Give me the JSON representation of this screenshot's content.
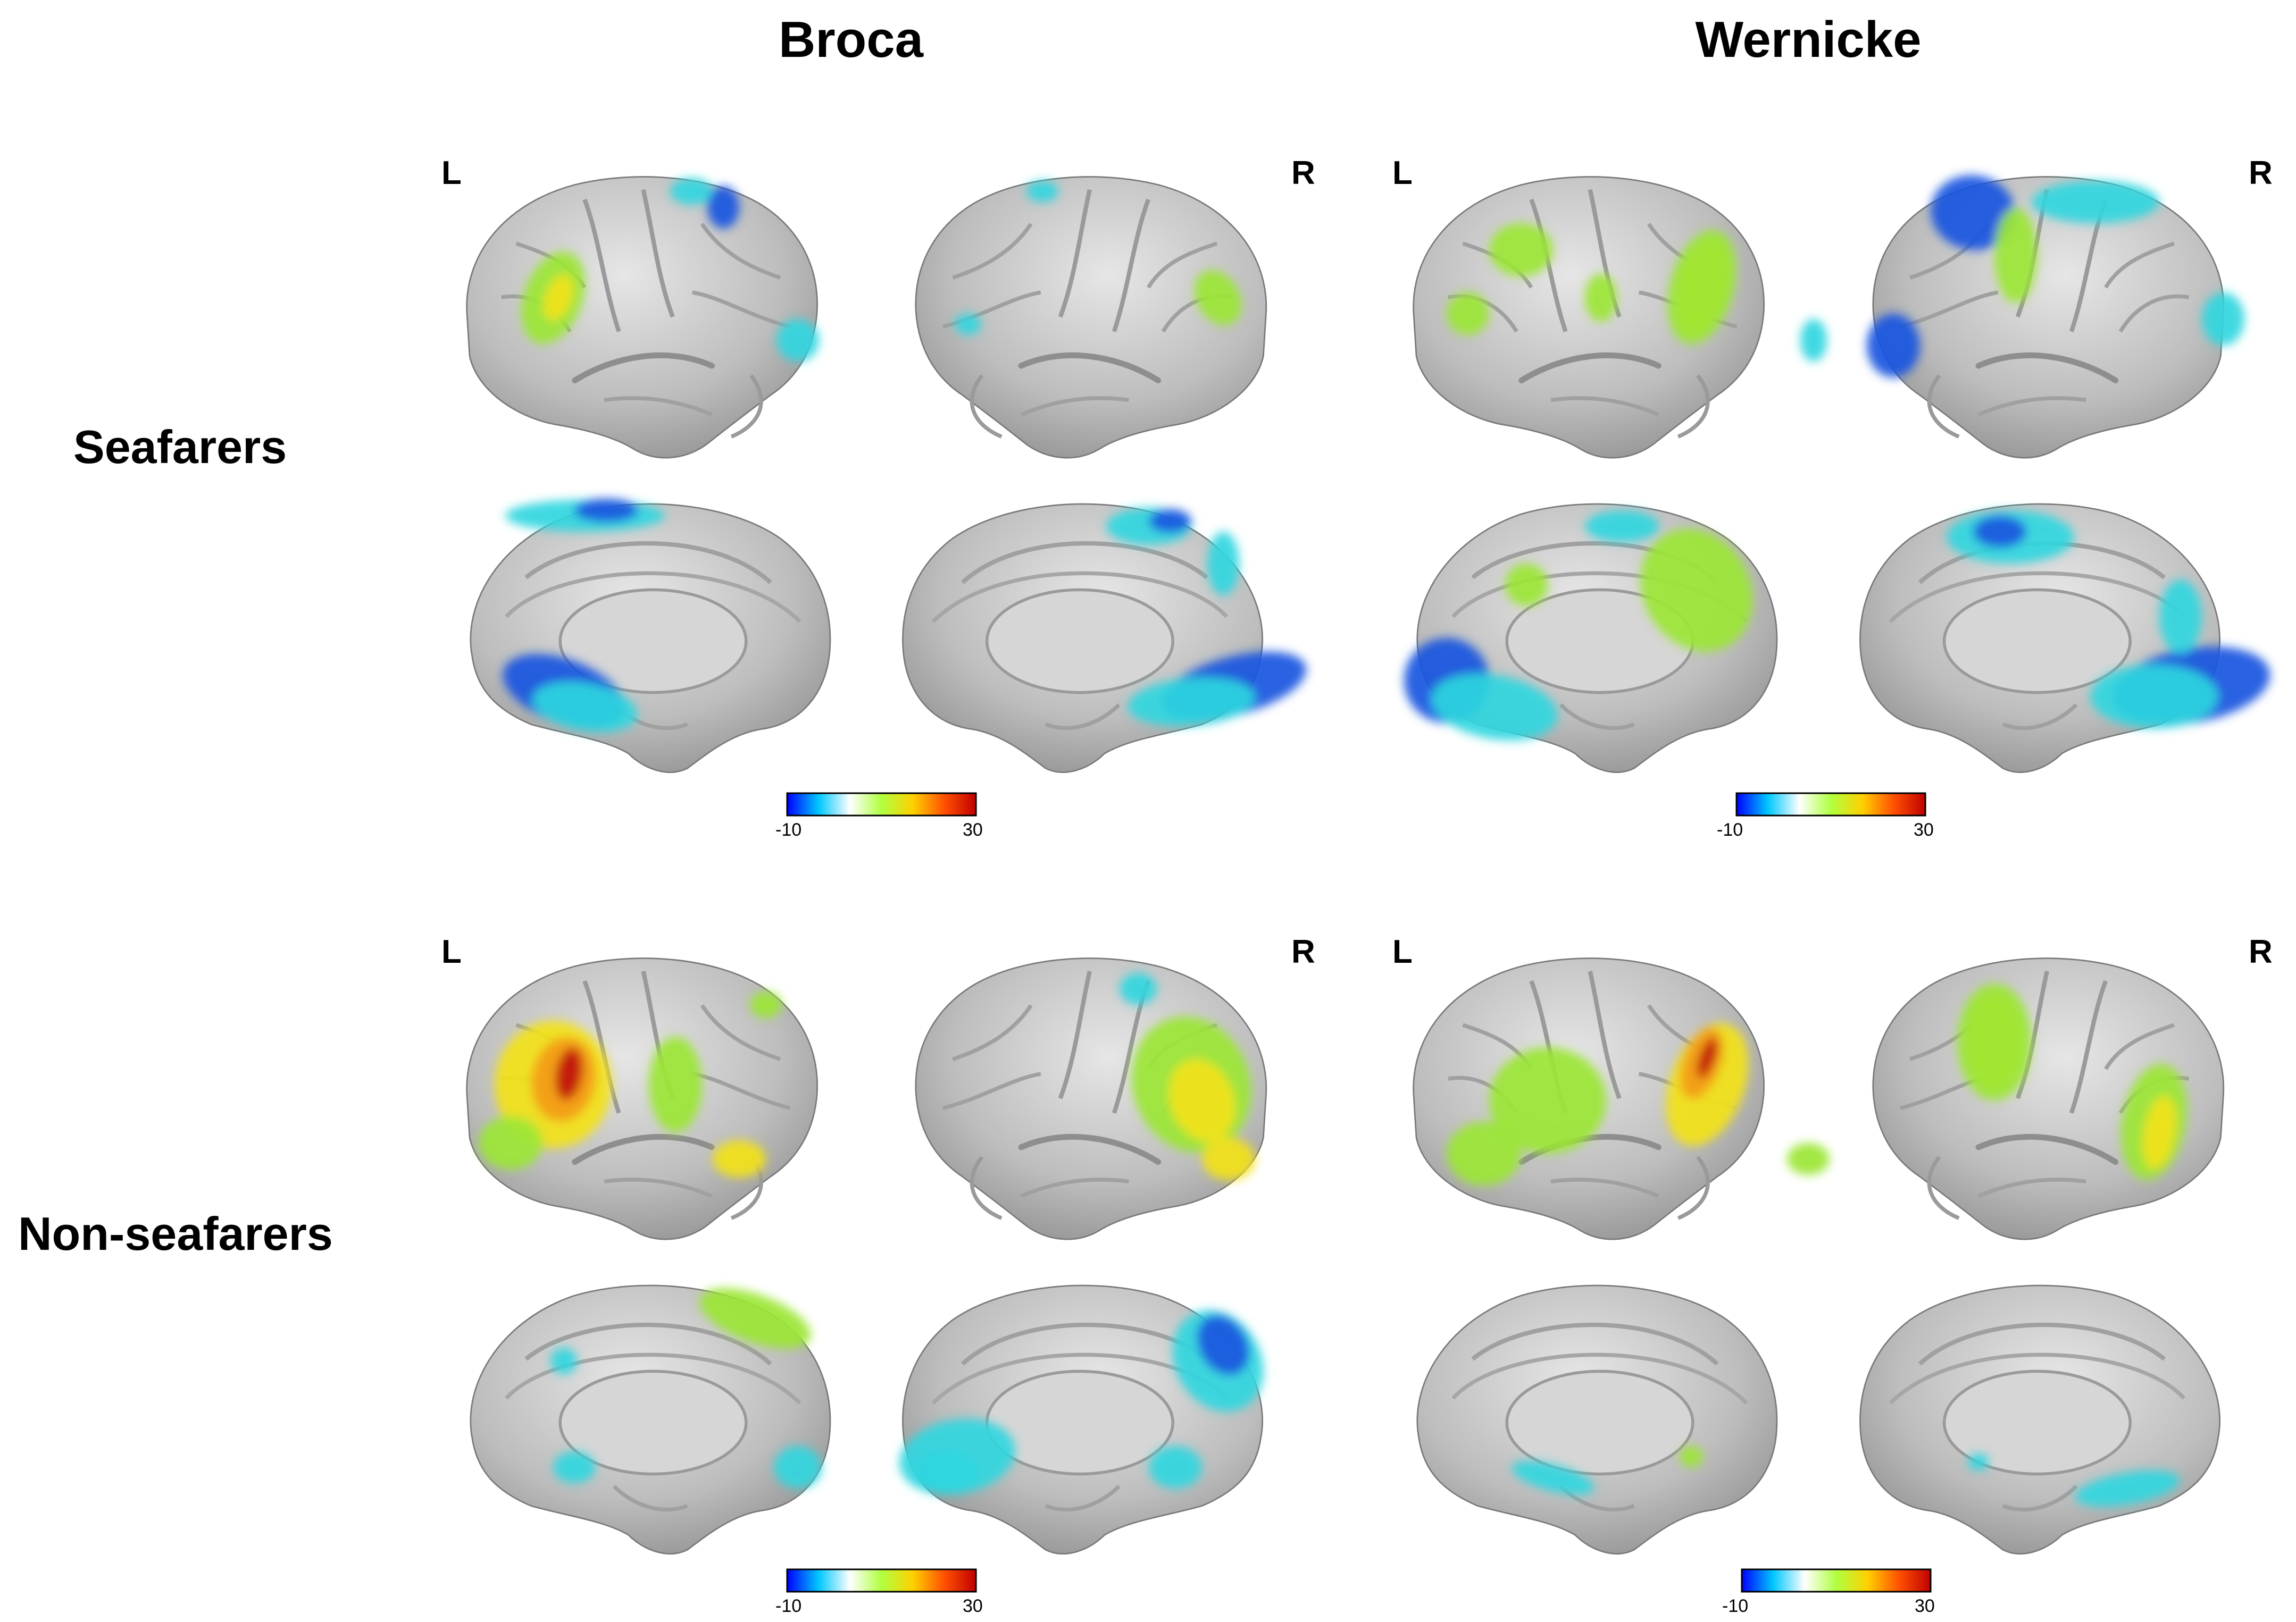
{
  "columns": [
    {
      "title": "Broca"
    },
    {
      "title": "Wernicke"
    }
  ],
  "rows": [
    {
      "title": "Seafarers"
    },
    {
      "title": "Non-seafarers"
    }
  ],
  "hemisphere_labels": {
    "left": "L",
    "right": "R"
  },
  "colorbar": {
    "min": "-10",
    "max": "30",
    "stops": [
      "#0000ff",
      "#00c8ff",
      "#ffffff",
      "#b0ff40",
      "#ffd000",
      "#ff5000",
      "#c00000"
    ]
  },
  "colors": {
    "brain": "#bdbdbd",
    "brain_shadow": "#8a8a8a",
    "callosum": "#d6d6d6",
    "blue": "#1a55e0",
    "cyan": "#2fd6e0",
    "green": "#9be635",
    "yellow": "#f2e21a",
    "orange": "#f39a12",
    "red": "#c0100c"
  }
}
